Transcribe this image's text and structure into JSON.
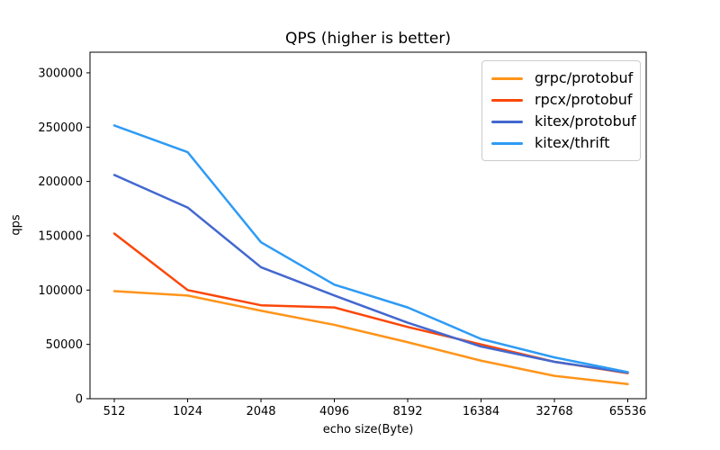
{
  "chart_data": {
    "type": "line",
    "title": "QPS (higher is better)",
    "xlabel": "echo size(Byte)",
    "ylabel": "qps",
    "categories": [
      "512",
      "1024",
      "2048",
      "4096",
      "8192",
      "16384",
      "32768",
      "65536"
    ],
    "x_scale": "log2-categorical",
    "yticks": [
      0,
      50000,
      100000,
      150000,
      200000,
      250000,
      300000
    ],
    "ylim": [
      0,
      319000
    ],
    "grid": false,
    "legend_position": "upper right",
    "axis_color": "#000000",
    "background_color": "#ffffff",
    "series": [
      {
        "name": "grpc/protobuf",
        "color": "#ff941a",
        "values": [
          99000,
          95000,
          81000,
          68000,
          52000,
          35000,
          21000,
          13500
        ]
      },
      {
        "name": "rpcx/protobuf",
        "color": "#fb4708",
        "values": [
          152000,
          100000,
          86000,
          84000,
          66000,
          50000,
          34000,
          23500
        ]
      },
      {
        "name": "kitex/protobuf",
        "color": "#4368cf",
        "values": [
          206000,
          176000,
          121000,
          95000,
          70000,
          48000,
          34000,
          24000
        ]
      },
      {
        "name": "kitex/thrift",
        "color": "#2e9bf5",
        "values": [
          251500,
          227000,
          144000,
          105000,
          84000,
          55000,
          38000,
          24500
        ]
      }
    ]
  }
}
